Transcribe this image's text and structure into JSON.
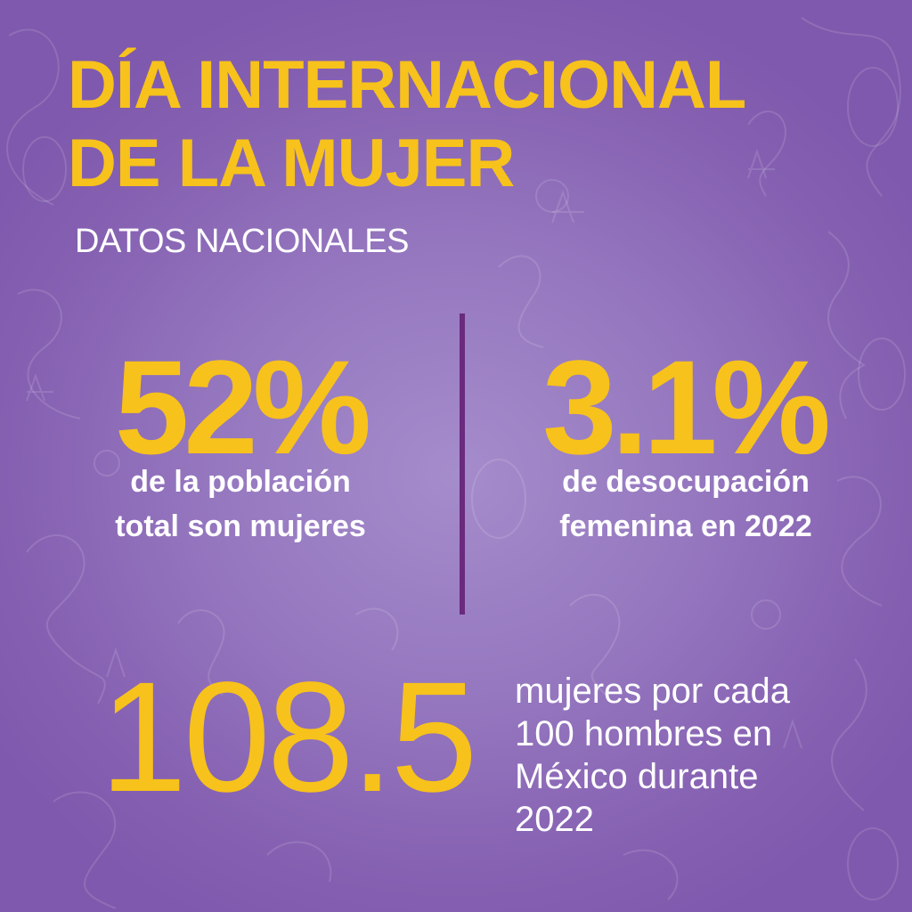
{
  "title": {
    "line1": "DÍA INTERNACIONAL",
    "line2": "DE LA MUJER"
  },
  "subtitle": "DATOS NACIONALES",
  "stats": [
    {
      "value": "52%",
      "desc_line1": "de la población",
      "desc_line2": "total son mujeres"
    },
    {
      "value": "3.1%",
      "desc_line1": "de desocupación",
      "desc_line2": "femenina en 2022"
    }
  ],
  "highlight": {
    "value": "108.5",
    "desc_line1": " mujeres por cada",
    "desc_line2": "100 hombres en",
    "desc_line3": "México durante",
    "desc_line4": "2022"
  },
  "colors": {
    "background": "#8661b2",
    "accent_yellow": "#f7c21b",
    "divider": "#6a2a7e",
    "text_white": "#ffffff"
  }
}
